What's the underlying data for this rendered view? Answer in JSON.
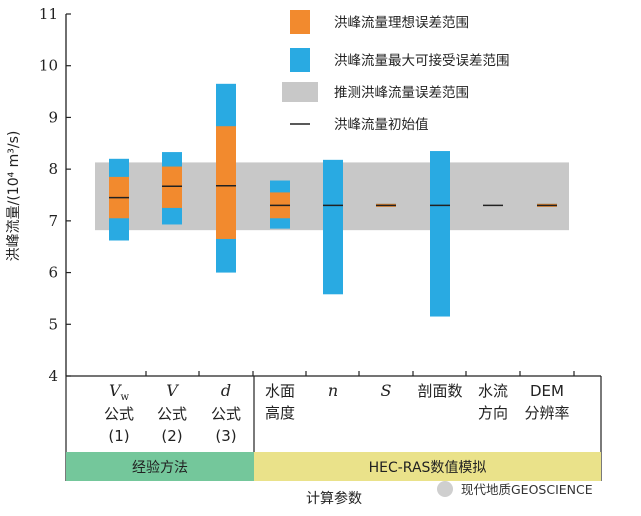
{
  "chart_data": {
    "type": "bar",
    "ylabel": "洪峰流量/(10⁴ m³/s)",
    "xlabel": "计算参数",
    "ylim": [
      4,
      11
    ],
    "yticks": [
      4,
      5,
      6,
      7,
      8,
      9,
      10,
      11
    ],
    "estimated_band": [
      6.82,
      8.13
    ],
    "categories": [
      {
        "lines": [
          "公式",
          "(1)"
        ],
        "symbol": "V",
        "symbol_sub": "w"
      },
      {
        "lines": [
          "公式",
          "(2)"
        ],
        "symbol": "V",
        "symbol_sub": ""
      },
      {
        "lines": [
          "公式",
          "(3)"
        ],
        "symbol": "d",
        "symbol_sub": ""
      },
      {
        "lines": [
          "水面",
          "高度"
        ],
        "symbol": "",
        "symbol_sub": ""
      },
      {
        "lines": [],
        "symbol": "n",
        "symbol_sub": ""
      },
      {
        "lines": [],
        "symbol": "S",
        "symbol_sub": ""
      },
      {
        "lines": [
          "剖面数"
        ],
        "symbol": "",
        "symbol_sub": ""
      },
      {
        "lines": [
          "水流",
          "方向"
        ],
        "symbol": "",
        "symbol_sub": ""
      },
      {
        "lines": [
          "DEM",
          "分辨率"
        ],
        "symbol": "",
        "symbol_sub": ""
      }
    ],
    "series": [
      {
        "name": "洪峰流量理想误差范围",
        "ranges": [
          [
            7.05,
            7.85
          ],
          [
            7.25,
            8.05
          ],
          [
            6.65,
            8.83
          ],
          [
            7.05,
            7.55
          ],
          null,
          [
            7.27,
            7.33
          ],
          null,
          null,
          [
            7.27,
            7.33
          ]
        ]
      },
      {
        "name": "洪峰流量最大可接受误差范围",
        "ranges": [
          [
            6.62,
            8.2
          ],
          [
            6.93,
            8.33
          ],
          [
            6.0,
            9.65
          ],
          [
            6.85,
            7.78
          ],
          [
            5.58,
            8.18
          ],
          [
            7.27,
            7.33
          ],
          [
            5.15,
            8.35
          ],
          null,
          [
            7.27,
            7.33
          ]
        ]
      },
      {
        "name": "推测洪峰流量误差范围"
      },
      {
        "name": "洪峰流量初始值",
        "values": [
          7.45,
          7.67,
          7.68,
          7.3,
          7.3,
          7.3,
          7.3,
          7.3,
          7.3
        ]
      }
    ],
    "groups": [
      {
        "label": "经验方法",
        "start": 0,
        "end": 2,
        "color": "#74c79b"
      },
      {
        "label": "HEC-RAS数值模拟",
        "start": 3,
        "end": 8,
        "color": "#eae28a"
      }
    ],
    "colors": {
      "ideal": "#f28a2e",
      "max_acceptable": "#29aae2",
      "estimated": "#c8c8c8",
      "initial": "#222222"
    }
  },
  "watermark": "现代地质GEOSCIENCE"
}
